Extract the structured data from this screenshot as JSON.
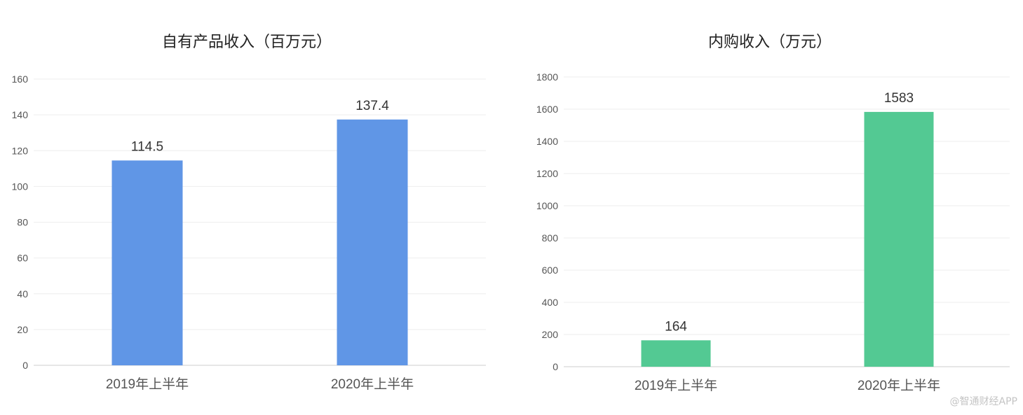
{
  "watermark": "@智通财经APP",
  "chart_data": [
    {
      "type": "bar",
      "title": "自有产品收入（百万元）",
      "categories": [
        "2019年上半年",
        "2020年上半年"
      ],
      "values": [
        114.5,
        137.4
      ],
      "value_labels": [
        "114.5",
        "137.4"
      ],
      "ylim": [
        0,
        160
      ],
      "yticks": [
        0,
        20,
        40,
        60,
        80,
        100,
        120,
        140,
        160
      ],
      "xlabel": "",
      "ylabel": "",
      "color": "#6096e6",
      "grid": true,
      "legend": "none"
    },
    {
      "type": "bar",
      "title": "内购收入（万元）",
      "categories": [
        "2019年上半年",
        "2020年上半年"
      ],
      "values": [
        164,
        1583
      ],
      "value_labels": [
        "164",
        "1583"
      ],
      "ylim": [
        0,
        1800
      ],
      "yticks": [
        0,
        200,
        400,
        600,
        800,
        1000,
        1200,
        1400,
        1600,
        1800
      ],
      "xlabel": "",
      "ylabel": "",
      "color": "#53c993",
      "grid": true,
      "legend": "none"
    }
  ]
}
